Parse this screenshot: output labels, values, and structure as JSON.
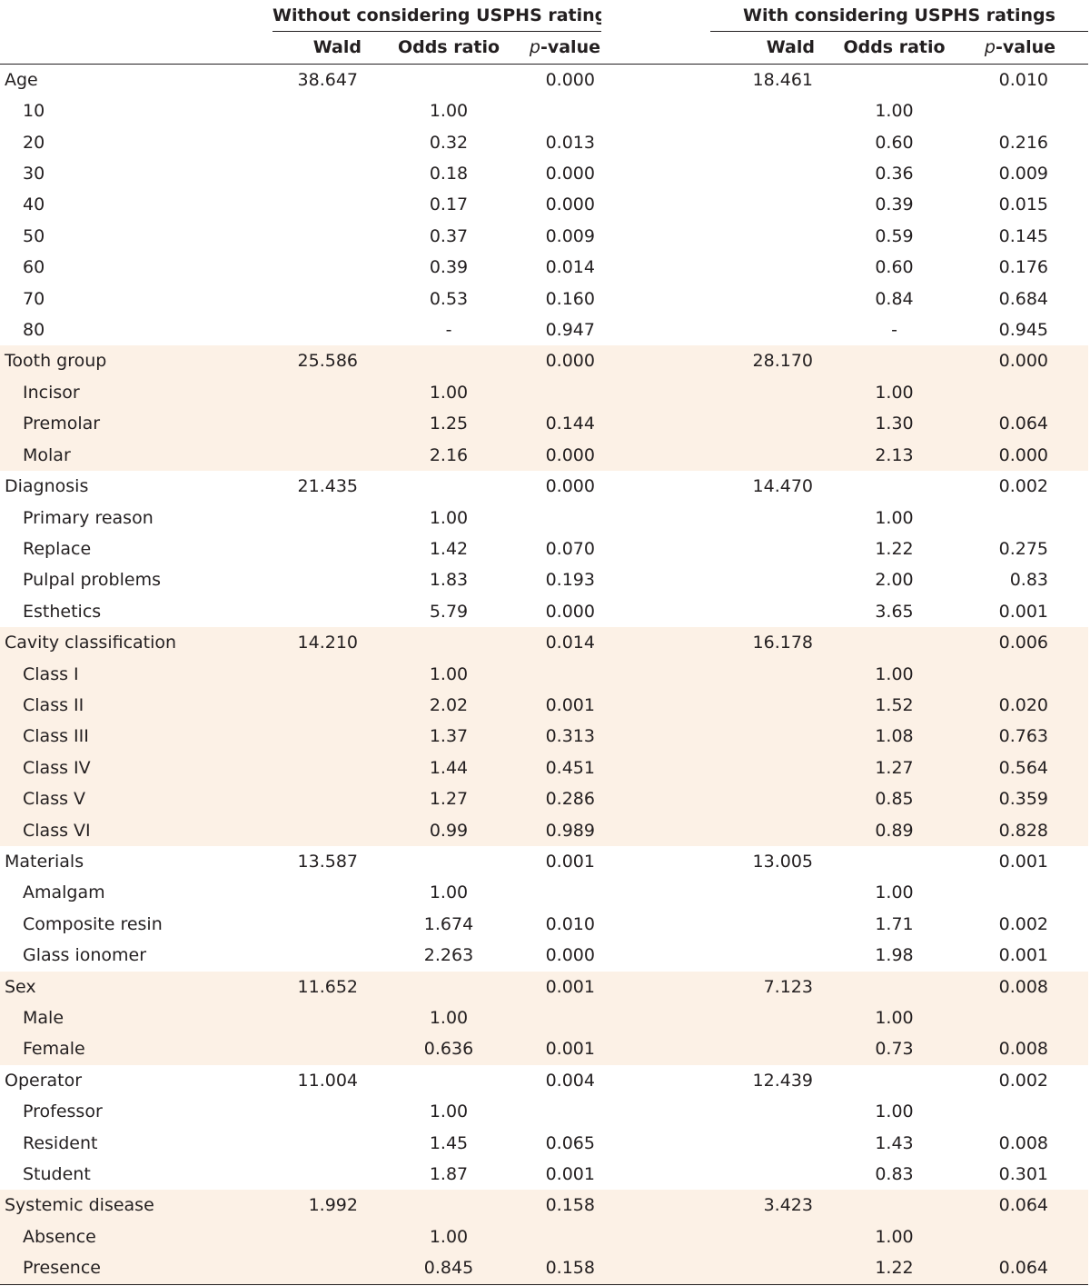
{
  "header": {
    "group_without": "Without considering USPHS ratings",
    "group_with": "With considering USPHS ratings",
    "col_wald": "Wald",
    "col_odds": "Odds ratio",
    "col_p_italic": "p",
    "col_p_rest": "-value"
  },
  "groups": [
    {
      "label": "Age",
      "w1": "38.647",
      "p1": "0.000",
      "w2": "18.461",
      "p2": "0.010",
      "rows": [
        {
          "label": "10",
          "or1": "1.00",
          "p1": "",
          "or2": "1.00",
          "p2": ""
        },
        {
          "label": "20",
          "or1": "0.32",
          "p1": "0.013",
          "or2": "0.60",
          "p2": "0.216"
        },
        {
          "label": "30",
          "or1": "0.18",
          "p1": "0.000",
          "or2": "0.36",
          "p2": "0.009"
        },
        {
          "label": "40",
          "or1": "0.17",
          "p1": "0.000",
          "or2": "0.39",
          "p2": "0.015"
        },
        {
          "label": "50",
          "or1": "0.37",
          "p1": "0.009",
          "or2": "0.59",
          "p2": "0.145"
        },
        {
          "label": "60",
          "or1": "0.39",
          "p1": "0.014",
          "or2": "0.60",
          "p2": "0.176"
        },
        {
          "label": "70",
          "or1": "0.53",
          "p1": "0.160",
          "or2": "0.84",
          "p2": "0.684"
        },
        {
          "label": "80",
          "or1": "-",
          "p1": "0.947",
          "or2": "-",
          "p2": "0.945"
        }
      ]
    },
    {
      "label": "Tooth group",
      "w1": "25.586",
      "p1": "0.000",
      "w2": "28.170",
      "p2": "0.000",
      "rows": [
        {
          "label": "Incisor",
          "or1": "1.00",
          "p1": "",
          "or2": "1.00",
          "p2": ""
        },
        {
          "label": "Premolar",
          "or1": "1.25",
          "p1": "0.144",
          "or2": "1.30",
          "p2": "0.064"
        },
        {
          "label": "Molar",
          "or1": "2.16",
          "p1": "0.000",
          "or2": "2.13",
          "p2": "0.000"
        }
      ]
    },
    {
      "label": "Diagnosis",
      "w1": "21.435",
      "p1": "0.000",
      "w2": "14.470",
      "p2": "0.002",
      "rows": [
        {
          "label": "Primary reason",
          "or1": "1.00",
          "p1": "",
          "or2": "1.00",
          "p2": ""
        },
        {
          "label": "Replace",
          "or1": "1.42",
          "p1": "0.070",
          "or2": "1.22",
          "p2": "0.275"
        },
        {
          "label": "Pulpal problems",
          "or1": "1.83",
          "p1": "0.193",
          "or2": "2.00",
          "p2": "0.83"
        },
        {
          "label": "Esthetics",
          "or1": "5.79",
          "p1": "0.000",
          "or2": "3.65",
          "p2": "0.001"
        }
      ]
    },
    {
      "label": "Cavity classification",
      "w1": "14.210",
      "p1": "0.014",
      "w2": "16.178",
      "p2": "0.006",
      "rows": [
        {
          "label": "Class I",
          "or1": "1.00",
          "p1": "",
          "or2": "1.00",
          "p2": ""
        },
        {
          "label": "Class II",
          "or1": "2.02",
          "p1": "0.001",
          "or2": "1.52",
          "p2": "0.020"
        },
        {
          "label": "Class III",
          "or1": "1.37",
          "p1": "0.313",
          "or2": "1.08",
          "p2": "0.763"
        },
        {
          "label": "Class IV",
          "or1": "1.44",
          "p1": "0.451",
          "or2": "1.27",
          "p2": "0.564"
        },
        {
          "label": "Class V",
          "or1": "1.27",
          "p1": "0.286",
          "or2": "0.85",
          "p2": "0.359"
        },
        {
          "label": "Class VI",
          "or1": "0.99",
          "p1": "0.989",
          "or2": "0.89",
          "p2": "0.828"
        }
      ]
    },
    {
      "label": "Materials",
      "w1": "13.587",
      "p1": "0.001",
      "w2": "13.005",
      "p2": "0.001",
      "rows": [
        {
          "label": "Amalgam",
          "or1": "1.00",
          "p1": "",
          "or2": "1.00",
          "p2": ""
        },
        {
          "label": "Composite resin",
          "or1": "1.674",
          "p1": "0.010",
          "or2": "1.71",
          "p2": "0.002"
        },
        {
          "label": "Glass ionomer",
          "or1": "2.263",
          "p1": "0.000",
          "or2": "1.98",
          "p2": "0.001"
        }
      ]
    },
    {
      "label": "Sex",
      "w1": "11.652",
      "p1": "0.001",
      "w2": "7.123",
      "p2": "0.008",
      "rows": [
        {
          "label": "Male",
          "or1": "1.00",
          "p1": "",
          "or2": "1.00",
          "p2": ""
        },
        {
          "label": "Female",
          "or1": "0.636",
          "p1": "0.001",
          "or2": "0.73",
          "p2": "0.008"
        }
      ]
    },
    {
      "label": "Operator",
      "w1": "11.004",
      "p1": "0.004",
      "w2": "12.439",
      "p2": "0.002",
      "rows": [
        {
          "label": "Professor",
          "or1": "1.00",
          "p1": "",
          "or2": "1.00",
          "p2": ""
        },
        {
          "label": "Resident",
          "or1": "1.45",
          "p1": "0.065",
          "or2": "1.43",
          "p2": "0.008"
        },
        {
          "label": "Student",
          "or1": "1.87",
          "p1": "0.001",
          "or2": "0.83",
          "p2": "0.301"
        }
      ]
    },
    {
      "label": "Systemic disease",
      "w1": "1.992",
      "p1": "0.158",
      "w2": "3.423",
      "p2": "0.064",
      "rows": [
        {
          "label": "Absence",
          "or1": "1.00",
          "p1": "",
          "or2": "1.00",
          "p2": ""
        },
        {
          "label": "Presence",
          "or1": "0.845",
          "p1": "0.158",
          "or2": "1.22",
          "p2": "0.064"
        }
      ]
    }
  ]
}
